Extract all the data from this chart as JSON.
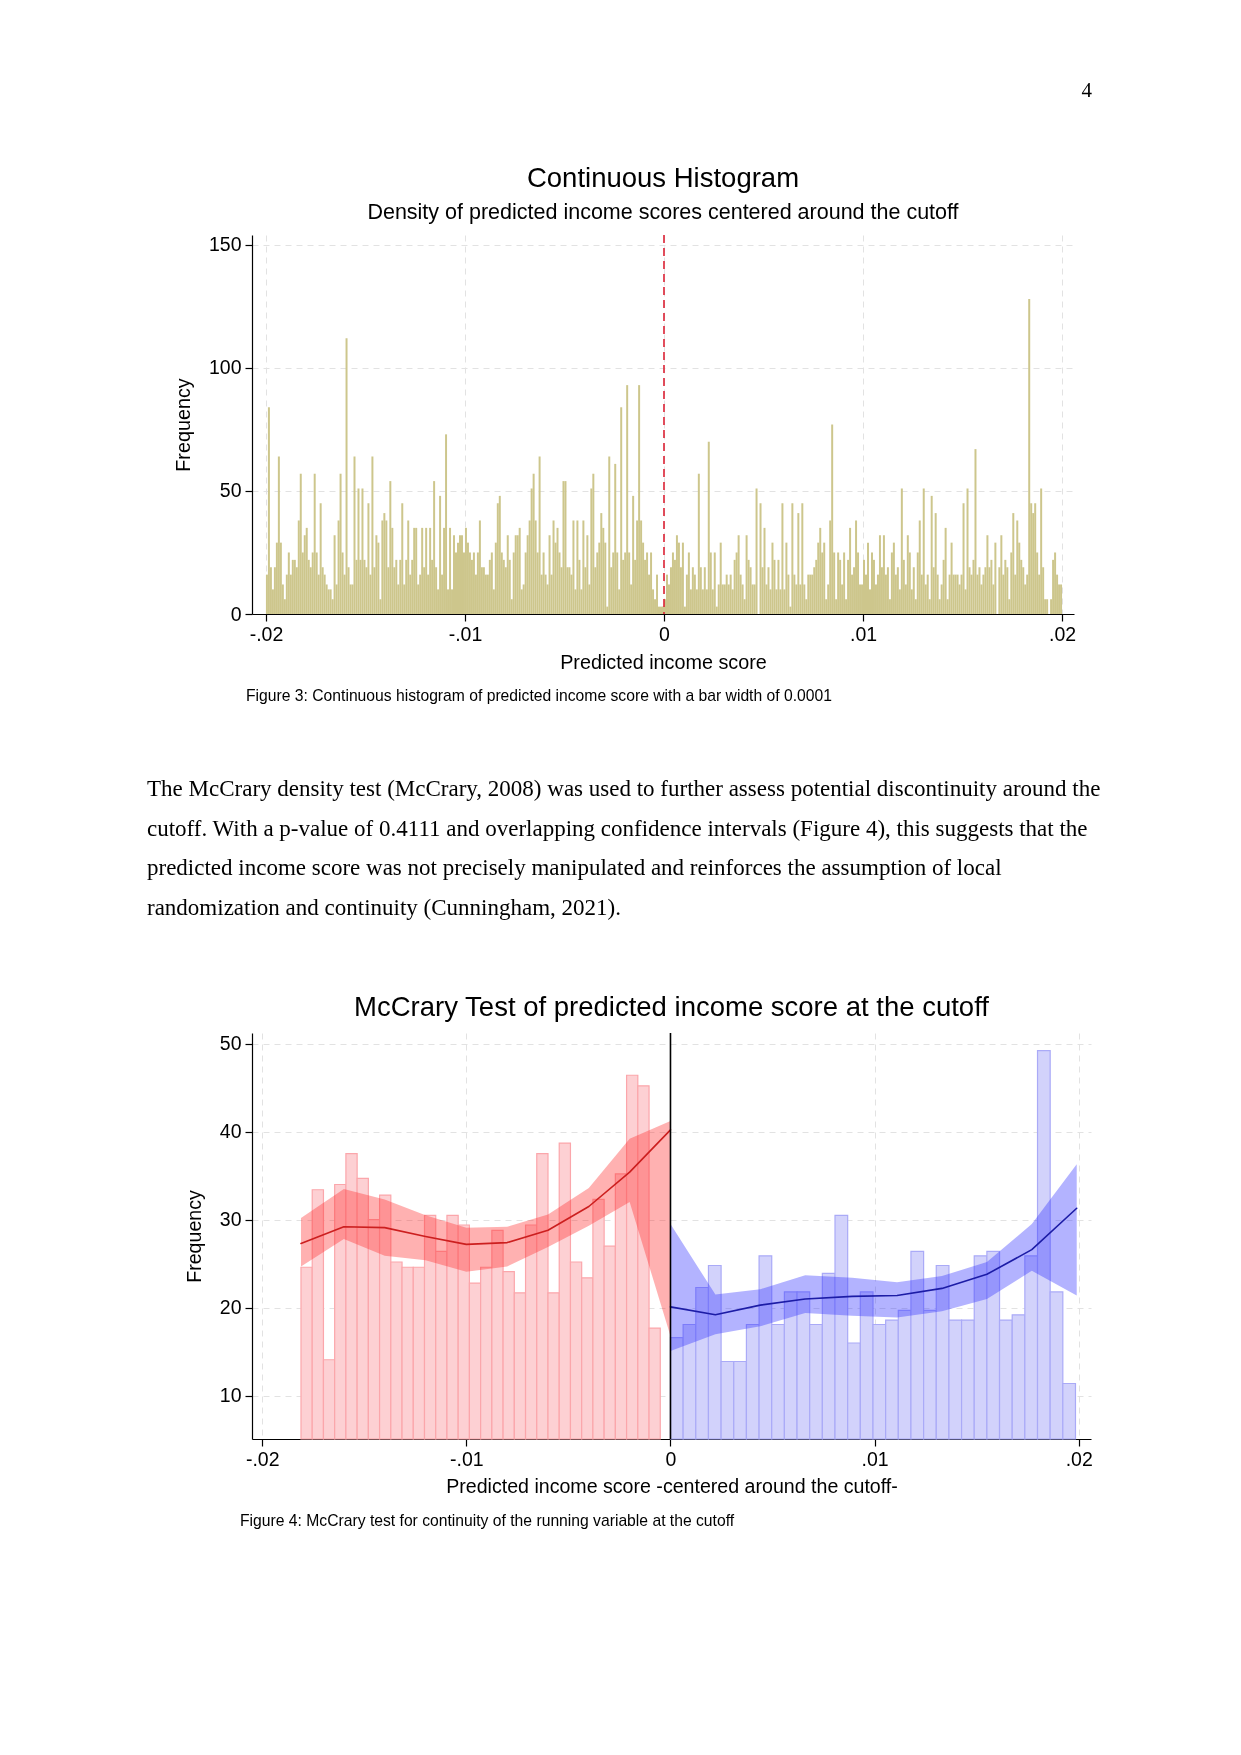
{
  "chart_data": [
    {
      "type": "other",
      "annotations": [
        "4"
      ]
    },
    {
      "type": "histogram",
      "title": "Continuous Histogram",
      "subtitle": "Density of predicted income scores centered around the cutoff",
      "xlabel": "Predicted income score",
      "ylabel": "Frequency",
      "annotations": [
        "Figure 3: Continuous histogram of predicted income score with a bar width of 0.0001"
      ],
      "color": "#cdc68c",
      "bins": [
        -0.02,
        -0.0199,
        -0.0198,
        -0.0197,
        -0.0196,
        -0.0195,
        -0.0194,
        -0.0193,
        -0.0192,
        -0.0191,
        -0.019,
        -0.0189,
        -0.0188,
        -0.0187,
        -0.0186,
        -0.0185,
        -0.0184,
        -0.0183,
        -0.0182,
        -0.0181,
        -0.018,
        -0.0179,
        -0.0178,
        -0.0177,
        -0.0176,
        -0.0175,
        -0.0174,
        -0.0173,
        -0.0172,
        -0.0171,
        -0.017,
        -0.0169,
        -0.0168,
        -0.0167,
        -0.0166,
        -0.0165,
        -0.0164,
        -0.0163,
        -0.0162,
        -0.0161,
        -0.016,
        -0.0159,
        -0.0158,
        -0.0157,
        -0.0156,
        -0.0155,
        -0.0154,
        -0.0153,
        -0.0152,
        -0.0151,
        -0.015,
        -0.0149,
        -0.0148,
        -0.0147,
        -0.0146,
        -0.0145,
        -0.0144,
        -0.0143,
        -0.0142,
        -0.0141,
        -0.014,
        -0.0139,
        -0.0138,
        -0.0137,
        -0.0136,
        -0.0135,
        -0.0134,
        -0.0133,
        -0.0132,
        -0.0131,
        -0.013,
        -0.0129,
        -0.0128,
        -0.0127,
        -0.0126,
        -0.0125,
        -0.0124,
        -0.0123,
        -0.0122,
        -0.0121,
        -0.012,
        -0.0119,
        -0.0118,
        -0.0117,
        -0.0116,
        -0.0115,
        -0.0114,
        -0.0113,
        -0.0112,
        -0.0111,
        -0.011,
        -0.0109,
        -0.0108,
        -0.0107,
        -0.0106,
        -0.0105,
        -0.0104,
        -0.0103,
        -0.0102,
        -0.0101,
        -0.01,
        -0.0099,
        -0.0098,
        -0.0097,
        -0.0096,
        -0.0095,
        -0.0094,
        -0.0093,
        -0.0092,
        -0.0091,
        -0.009,
        -0.0089,
        -0.0088,
        -0.0087,
        -0.0086,
        -0.0085,
        -0.0084,
        -0.0083,
        -0.0082,
        -0.0081,
        -0.008,
        -0.0079,
        -0.0078,
        -0.0077,
        -0.0076,
        -0.0075,
        -0.0074,
        -0.0073,
        -0.0072,
        -0.0071,
        -0.007,
        -0.0069,
        -0.0068,
        -0.0067,
        -0.0066,
        -0.0065,
        -0.0064,
        -0.0063,
        -0.0062,
        -0.0061,
        -0.006,
        -0.0059,
        -0.0058,
        -0.0057,
        -0.0056,
        -0.0055,
        -0.0054,
        -0.0053,
        -0.0052,
        -0.0051,
        -0.005,
        -0.0049,
        -0.0048,
        -0.0047,
        -0.0046,
        -0.0045,
        -0.0044,
        -0.0043,
        -0.0042,
        -0.0041,
        -0.004,
        -0.0039,
        -0.0038,
        -0.0037,
        -0.0036,
        -0.0035,
        -0.0034,
        -0.0033,
        -0.0032,
        -0.0031,
        -0.003,
        -0.0029,
        -0.0028,
        -0.0027,
        -0.0026,
        -0.0025,
        -0.0024,
        -0.0023,
        -0.0022,
        -0.0021,
        -0.002,
        -0.0019,
        -0.0018,
        -0.0017,
        -0.0016,
        -0.0015,
        -0.0014,
        -0.0013,
        -0.0012,
        -0.0011,
        -0.001,
        -0.0009,
        -0.0008,
        -0.0007,
        -0.0006,
        -0.0005,
        -0.0004,
        -0.0003,
        -0.0002,
        -0.0001,
        0,
        0.0001,
        0.0002,
        0.0003,
        0.0004,
        0.0005,
        0.0006,
        0.0007,
        0.0008,
        0.0009,
        0.001,
        0.0011,
        0.0012,
        0.0013,
        0.0014,
        0.0015,
        0.0016,
        0.0017,
        0.0018,
        0.0019,
        0.002,
        0.0021,
        0.0022,
        0.0023,
        0.0024,
        0.0025,
        0.0026,
        0.0027,
        0.0028,
        0.0029,
        0.003,
        0.0031,
        0.0032,
        0.0033,
        0.0034,
        0.0035,
        0.0036,
        0.0037,
        0.0038,
        0.0039,
        0.004,
        0.0041,
        0.0042,
        0.0043,
        0.0044,
        0.0045,
        0.0046,
        0.0047,
        0.0048,
        0.0049,
        0.005,
        0.0051,
        0.0052,
        0.0053,
        0.0054,
        0.0055,
        0.0056,
        0.0057,
        0.0058,
        0.0059,
        0.006,
        0.0061,
        0.0062,
        0.0063,
        0.0064,
        0.0065,
        0.0066,
        0.0067,
        0.0068,
        0.0069,
        0.007,
        0.0071,
        0.0072,
        0.0073,
        0.0074,
        0.0075,
        0.0076,
        0.0077,
        0.0078,
        0.0079,
        0.008,
        0.0081,
        0.0082,
        0.0083,
        0.0084,
        0.0085,
        0.0086,
        0.0087,
        0.0088,
        0.0089,
        0.009,
        0.0091,
        0.0092,
        0.0093,
        0.0094,
        0.0095,
        0.0096,
        0.0097,
        0.0098,
        0.0099,
        0.01,
        0.0101,
        0.0102,
        0.0103,
        0.0104,
        0.0105,
        0.0106,
        0.0107,
        0.0108,
        0.0109,
        0.011,
        0.0111,
        0.0112,
        0.0113,
        0.0114,
        0.0115,
        0.0116,
        0.0117,
        0.0118,
        0.0119,
        0.012,
        0.0121,
        0.0122,
        0.0123,
        0.0124,
        0.0125,
        0.0126,
        0.0127,
        0.0128,
        0.0129,
        0.013,
        0.0131,
        0.0132,
        0.0133,
        0.0134,
        0.0135,
        0.0136,
        0.0137,
        0.0138,
        0.0139,
        0.014,
        0.0141,
        0.0142,
        0.0143,
        0.0144,
        0.0145,
        0.0146,
        0.0147,
        0.0148,
        0.0149,
        0.015,
        0.0151,
        0.0152,
        0.0153,
        0.0154,
        0.0155,
        0.0156,
        0.0157,
        0.0158,
        0.0159,
        0.016,
        0.0161,
        0.0162,
        0.0163,
        0.0164,
        0.0165,
        0.0166,
        0.0167,
        0.0168,
        0.0169,
        0.017,
        0.0171,
        0.0172,
        0.0173,
        0.0174,
        0.0175,
        0.0176,
        0.0177,
        0.0178,
        0.0179,
        0.018,
        0.0181,
        0.0182,
        0.0183,
        0.0184,
        0.0185,
        0.0186,
        0.0187,
        0.0188,
        0.0189,
        0.019,
        0.0191,
        0.0192,
        0.0193,
        0.0194,
        0.0195,
        0.0196,
        0.0197,
        0.0198,
        0.0199,
        0.02
      ],
      "values": [
        16,
        84,
        19,
        10,
        19,
        29,
        64,
        29,
        12,
        6,
        16,
        25,
        16,
        22,
        22,
        19,
        38,
        57,
        25,
        32,
        35,
        22,
        19,
        25,
        57,
        25,
        16,
        45,
        19,
        16,
        12,
        10,
        10,
        6,
        32,
        12,
        38,
        57,
        25,
        16,
        112,
        19,
        12,
        12,
        64,
        22,
        51,
        22,
        51,
        22,
        19,
        45,
        16,
        64,
        19,
        32,
        29,
        6,
        38,
        41,
        38,
        19,
        54,
        35,
        19,
        22,
        12,
        22,
        45,
        12,
        22,
        38,
        16,
        22,
        35,
        35,
        12,
        16,
        35,
        19,
        35,
        16,
        35,
        22,
        54,
        19,
        10,
        48,
        16,
        35,
        73,
        10,
        35,
        10,
        32,
        25,
        29,
        32,
        32,
        25,
        35,
        29,
        25,
        22,
        25,
        16,
        25,
        38,
        19,
        19,
        16,
        16,
        22,
        25,
        10,
        29,
        45,
        48,
        25,
        22,
        19,
        32,
        22,
        6,
        25,
        32,
        32,
        35,
        10,
        12,
        25,
        32,
        38,
        51,
        57,
        38,
        25,
        64,
        16,
        25,
        16,
        12,
        32,
        16,
        38,
        29,
        35,
        25,
        19,
        54,
        54,
        19,
        19,
        16,
        38,
        10,
        38,
        22,
        10,
        38,
        19,
        32,
        12,
        51,
        57,
        19,
        25,
        29,
        41,
        35,
        29,
        3,
        64,
        19,
        25,
        61,
        25,
        10,
        84,
        22,
        25,
        93,
        25,
        12,
        48,
        22,
        38,
        93,
        38,
        29,
        22,
        25,
        16,
        25,
        10,
        6,
        16,
        3,
        3,
        3,
        6,
        16,
        12,
        19,
        25,
        22,
        32,
        29,
        19,
        29,
        3,
        16,
        25,
        10,
        19,
        16,
        10,
        57,
        19,
        10,
        19,
        10,
        70,
        25,
        10,
        25,
        3,
        12,
        29,
        12,
        12,
        16,
        12,
        16,
        10,
        22,
        25,
        32,
        16,
        12,
        6,
        32,
        22,
        19,
        12,
        12,
        51,
        0,
        45,
        19,
        35,
        12,
        19,
        10,
        29,
        22,
        10,
        22,
        10,
        45,
        10,
        29,
        16,
        3,
        45,
        16,
        12,
        41,
        12,
        45,
        12,
        6,
        16,
        16,
        16,
        19,
        22,
        29,
        35,
        25,
        29,
        6,
        12,
        38,
        77,
        25,
        6,
        25,
        22,
        12,
        25,
        6,
        22,
        35,
        16,
        19,
        38,
        25,
        12,
        12,
        22,
        16,
        29,
        10,
        25,
        22,
        12,
        16,
        32,
        19,
        32,
        16,
        19,
        6,
        25,
        29,
        16,
        19,
        10,
        51,
        22,
        12,
        32,
        25,
        10,
        19,
        6,
        25,
        38,
        16,
        51,
        12,
        16,
        6,
        48,
        19,
        41,
        16,
        6,
        12,
        22,
        35,
        6,
        16,
        29,
        16,
        16,
        16,
        12,
        16,
        45,
        10,
        51,
        19,
        16,
        22,
        67,
        16,
        19,
        12,
        16,
        19,
        32,
        19,
        22,
        12,
        29,
        0,
        19,
        32,
        16,
        22,
        19,
        6,
        25,
        41,
        16,
        38,
        29,
        22,
        19,
        12,
        16,
        128,
        45,
        41,
        45,
        25,
        16,
        51,
        19,
        6,
        6,
        0,
        6,
        22,
        25,
        16,
        12,
        12
      ],
      "xlim": [
        -0.0207,
        0.0206
      ],
      "ylim": [
        0,
        154
      ],
      "xticks": [
        {
          "value": -0.02,
          "label": "-.02"
        },
        {
          "value": -0.01,
          "label": "-.01"
        },
        0,
        {
          "value": 0.01,
          "label": ".01"
        },
        {
          "value": 0.02,
          "label": ".02"
        }
      ],
      "yticks": [
        0,
        50,
        100,
        150
      ],
      "grid": true,
      "ref_lines": [
        {
          "axis": "x",
          "value": 0,
          "color": "#dc2335",
          "line_style": "dashed"
        }
      ]
    },
    {
      "type": "other",
      "annotations": [
        "The McCrary density test (McCrary, 2008) was used to further assess potential discontinuity around the cutoff. With a p-value of 0.4111 and overlapping confidence intervals (Figure 4), this suggests that the predicted income score was not precisely manipulated and reinforces the assumption of local randomization and continuity (Cunningham, 2021)."
      ]
    },
    {
      "type": "histogram",
      "title": "McCrary Test of predicted income score at the cutoff",
      "xlabel": "Predicted income score -centered around the cutoff-",
      "ylabel": "Frequency",
      "annotations": [
        "Figure 4: McCrary test for continuity of the running variable at the cutoff"
      ],
      "bins": [
        -0.0181,
        -0.01755,
        -0.017,
        -0.01645,
        -0.0159,
        -0.01535,
        -0.0148,
        -0.01425,
        -0.0137,
        -0.01315,
        -0.0126,
        -0.01205,
        -0.0115,
        -0.01095,
        -0.0104,
        -0.00985,
        -0.0093,
        -0.00875,
        -0.0082,
        -0.00765,
        -0.0071,
        -0.00655,
        -0.006,
        -0.00545,
        -0.0049,
        -0.00435,
        -0.0038,
        -0.00325,
        -0.0027,
        -0.00215,
        -0.0016,
        -0.00105,
        -0.0005,
        0,
        0.00062,
        0.00124,
        0.00186,
        0.00248,
        0.0031,
        0.00372,
        0.00434,
        0.00496,
        0.00558,
        0.0062,
        0.00682,
        0.00744,
        0.00806,
        0.00868,
        0.0093,
        0.00992,
        0.01054,
        0.01116,
        0.01178,
        0.0124,
        0.01302,
        0.01364,
        0.01426,
        0.01488,
        0.0155,
        0.01612,
        0.01674,
        0.01736,
        0.01798,
        0.0186,
        0.01922,
        0.01984
      ],
      "series": [
        {
          "color": "#fdd0d3",
          "values": [
            24.6,
            33.4,
            14.1,
            34.0,
            37.5,
            34.7,
            30.0,
            32.8,
            25.2,
            24.6,
            24.6,
            30.5,
            26.4,
            30.5,
            29.4,
            22.8,
            24.6,
            28.8,
            24.1,
            21.7,
            29.4,
            37.5,
            21.7,
            38.7,
            25.2,
            23.4,
            32.3,
            27.0,
            35.2,
            46.4,
            45.2,
            17.7,
            null,
            null,
            null,
            null,
            null,
            null,
            null,
            null,
            null,
            null,
            null,
            null,
            null,
            null,
            null,
            null,
            null,
            null,
            null,
            null,
            null,
            null,
            null,
            null,
            null,
            null,
            null,
            null,
            null,
            null,
            null,
            null,
            null
          ]
        },
        {
          "color": "#d2d2fb",
          "values": [
            null,
            null,
            null,
            null,
            null,
            null,
            null,
            null,
            null,
            null,
            null,
            null,
            null,
            null,
            null,
            null,
            null,
            null,
            null,
            null,
            null,
            null,
            null,
            null,
            null,
            null,
            null,
            null,
            null,
            null,
            null,
            null,
            null,
            16.6,
            18.1,
            22.3,
            24.8,
            13.9,
            13.9,
            18.1,
            25.9,
            18.1,
            21.8,
            21.8,
            18.1,
            23.9,
            30.5,
            16.0,
            21.8,
            18.1,
            18.6,
            19.7,
            26.4,
            19.7,
            24.8,
            18.6,
            18.6,
            25.9,
            26.4,
            18.6,
            19.2,
            25.9,
            49.2,
            21.8,
            11.4
          ]
        },
        {
          "type": "line",
          "color": "#cc1f1f",
          "x": [
            -0.0181,
            -0.016,
            -0.014,
            -0.012,
            -0.01,
            -0.008,
            -0.006,
            -0.004,
            -0.002,
            0
          ],
          "values": [
            27.3,
            29.2,
            29.1,
            28.1,
            27.2,
            27.4,
            28.8,
            31.5,
            35.4,
            40.2
          ],
          "lower": [
            24.7,
            27.8,
            25.9,
            25.4,
            24.1,
            24.7,
            26.9,
            29.3,
            32.0,
            16.8
          ],
          "upper": [
            30.2,
            33.5,
            32.3,
            30.5,
            29.1,
            29.2,
            30.6,
            33.6,
            39.2,
            41.2
          ]
        },
        {
          "type": "line",
          "color": "#1c1ca6",
          "x": [
            0,
            0.0022,
            0.0044,
            0.0066,
            0.0089,
            0.0111,
            0.0133,
            0.0155,
            0.0177,
            0.0199
          ],
          "values": [
            20.1,
            19.2,
            20.3,
            21.0,
            21.3,
            21.4,
            22.2,
            23.8,
            26.6,
            31.3
          ],
          "lower": [
            15.1,
            17.0,
            17.9,
            19.4,
            19.1,
            18.9,
            19.6,
            21.0,
            24.2,
            21.4
          ],
          "upper": [
            29.5,
            21.5,
            22.1,
            23.7,
            23.4,
            22.9,
            23.6,
            25.2,
            29.5,
            36.3
          ]
        }
      ],
      "xlim": [
        -0.0205,
        0.0206
      ],
      "ylim": [
        5.1,
        51.2
      ],
      "xticks": [
        {
          "value": -0.02,
          "label": "-.02"
        },
        {
          "value": -0.01,
          "label": "-.01"
        },
        0,
        {
          "value": 0.01,
          "label": ".01"
        },
        {
          "value": 0.02,
          "label": ".02"
        }
      ],
      "yticks": [
        10,
        20,
        30,
        40,
        50
      ],
      "grid": true,
      "ref_lines": [
        {
          "axis": "x",
          "value": 0,
          "color": "#000000"
        }
      ]
    }
  ]
}
